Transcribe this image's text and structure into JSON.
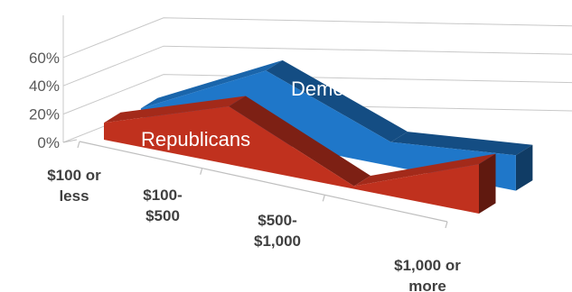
{
  "chart_data": {
    "type": "area",
    "categories": [
      "$100 or less",
      "$100-$500",
      "$500-$1,000",
      "$1,000 or more"
    ],
    "category_lines": [
      [
        "$100 or",
        "less"
      ],
      [
        "$100-",
        "$500"
      ],
      [
        "$500-",
        "$1,000"
      ],
      [
        "$1,000 or",
        "more"
      ]
    ],
    "series": [
      {
        "name": "Democrats",
        "values": [
          6,
          50,
          17,
          25
        ],
        "color": "#1F77C9"
      },
      {
        "name": "Republicans",
        "values": [
          12,
          41,
          2,
          35
        ],
        "color": "#C0311E"
      }
    ],
    "yticks": [
      "0%",
      "20%",
      "40%",
      "60%"
    ],
    "ylim": [
      0,
      60
    ],
    "grid": true,
    "three_d": true
  }
}
